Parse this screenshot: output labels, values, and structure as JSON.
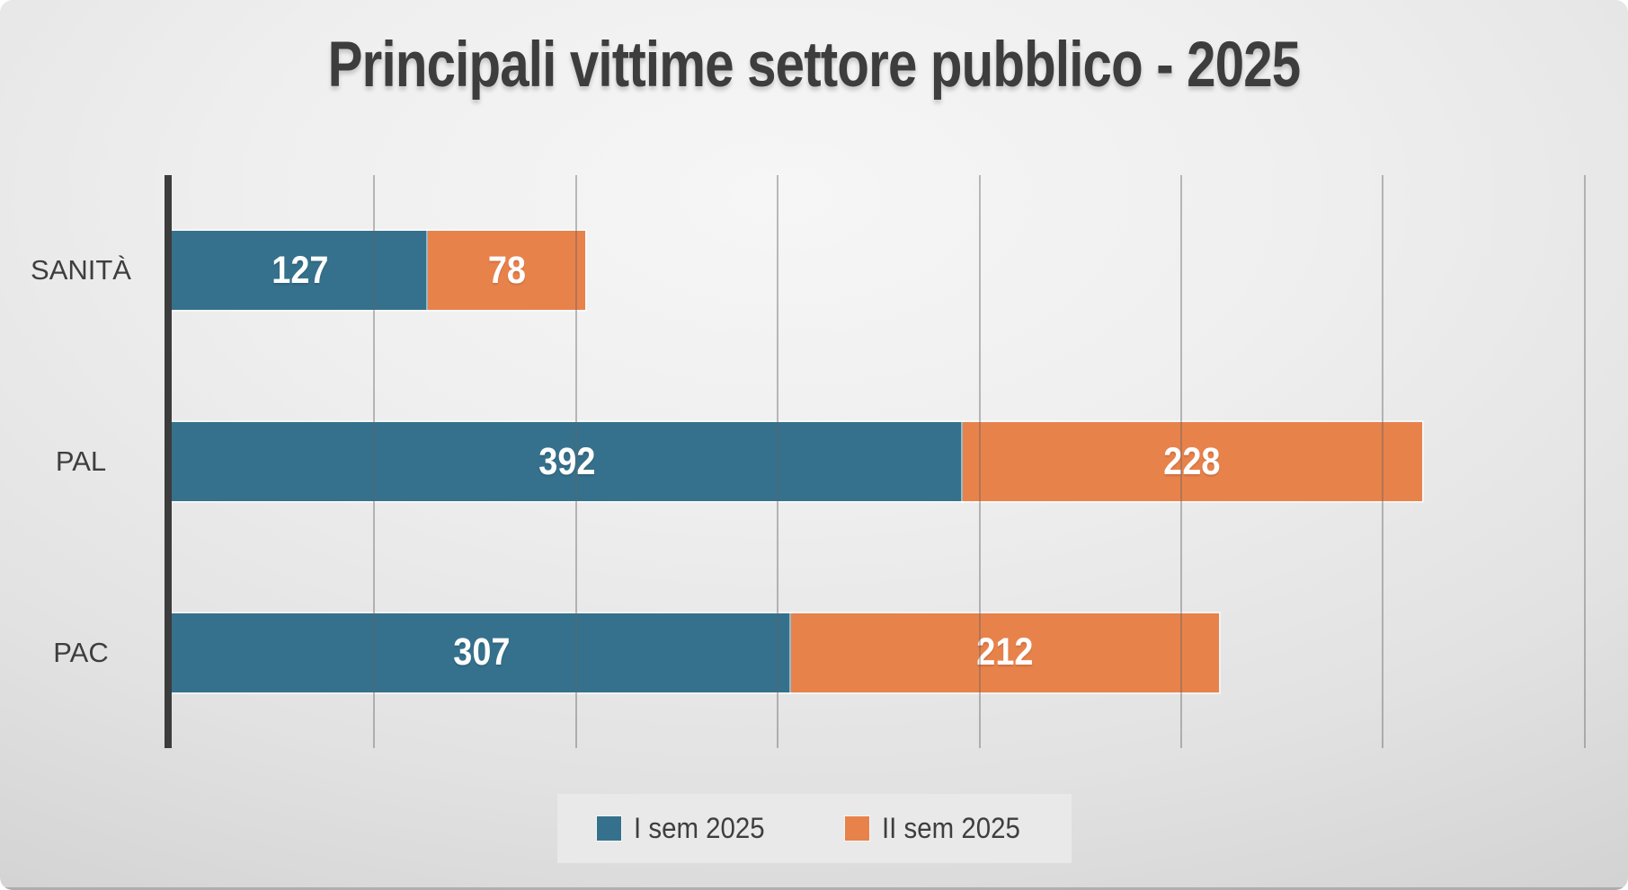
{
  "title": "Principali vittime settore pubblico - 2025",
  "chart_data": {
    "type": "bar",
    "orientation": "horizontal",
    "stacked": true,
    "title": "Principali vittime settore pubblico - 2025",
    "categories": [
      "SANITÀ",
      "PAL",
      "PAC"
    ],
    "series": [
      {
        "name": "I sem 2025",
        "color": "#35718C",
        "values": [
          127,
          392,
          307
        ]
      },
      {
        "name": "II sem 2025",
        "color": "#E8824B",
        "values": [
          78,
          228,
          212
        ]
      }
    ],
    "totals": [
      205,
      620,
      519
    ],
    "data_labels": [
      [
        127,
        392,
        307
      ],
      [
        78,
        228,
        212
      ]
    ],
    "axis_max": 722,
    "gridlines": [
      100,
      200,
      300,
      400,
      500,
      600,
      700
    ],
    "grid": "vertical",
    "legend_position": "bottom",
    "xlabel": "",
    "ylabel": ""
  },
  "legend": {
    "items": [
      {
        "label": "I sem 2025",
        "color": "#35718C"
      },
      {
        "label": "II sem 2025",
        "color": "#E8824B"
      }
    ]
  },
  "colors": {
    "series1": "#35718C",
    "series2": "#E8824B",
    "title_text": "#3d3d3d",
    "label_text": "#3e3e3e",
    "bar_value_text": "#ffffff",
    "axis_line": "#3c3c3c",
    "gridline": "#6d6d6d",
    "legend_panel_bg": "#e9e9e9"
  }
}
